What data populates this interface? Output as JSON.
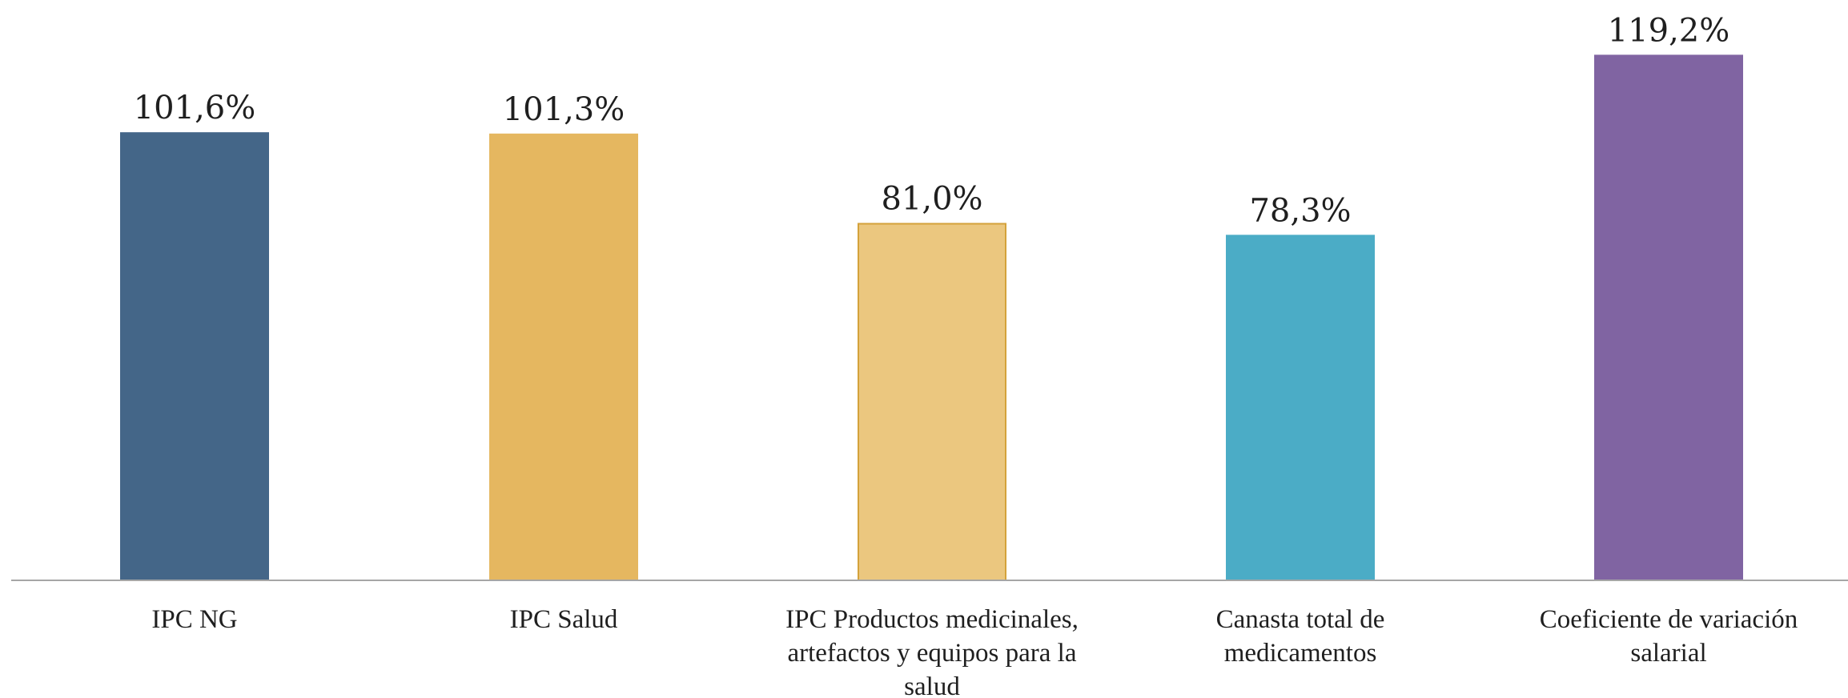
{
  "chart_data": {
    "type": "bar",
    "categories": [
      [
        "IPC NG"
      ],
      [
        "IPC Salud"
      ],
      [
        "IPC Productos medicinales,",
        "artefactos y equipos para la",
        "salud"
      ],
      [
        "Canasta total de",
        "medicamentos"
      ],
      [
        "Coeficiente de variación",
        "salarial"
      ]
    ],
    "values": [
      101.6,
      101.3,
      81.0,
      78.3,
      119.2
    ],
    "data_labels": [
      "101,6%",
      "101,3%",
      "81,0%",
      "78,3%",
      "119,2%"
    ],
    "colors": [
      "#446688",
      "#E5B760",
      "#EBC77F",
      "#4BACC6",
      "#8064A2"
    ],
    "border_colors": [
      "#446688",
      "#E5B760",
      "#D4A23B",
      "#4BACC6",
      "#8064A2"
    ],
    "baseline_color": "#A6A6A6",
    "title": "",
    "xlabel": "",
    "ylabel": "",
    "ylim": [
      0,
      120
    ],
    "grid": false,
    "legend": "none"
  }
}
